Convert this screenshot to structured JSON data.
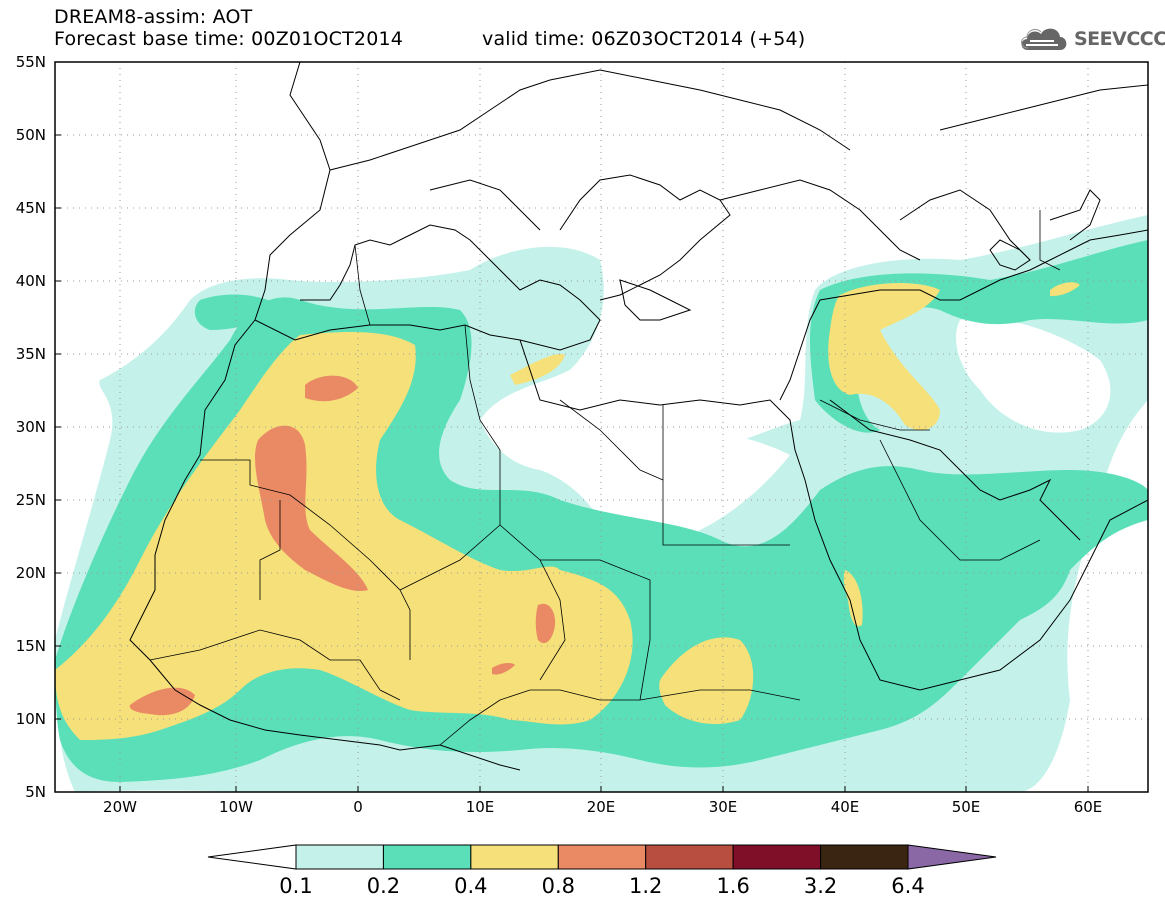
{
  "header": {
    "title_line1": "DREAM8-assim: AOT",
    "title_line2_left": "Forecast base time: 00Z01OCT2014",
    "title_line2_right": "valid time: 06Z03OCT2014 (+54)"
  },
  "logo": {
    "text": "SEEVCCC",
    "icon": "cloud-logo-icon"
  },
  "map": {
    "lon_range": [
      -25,
      65
    ],
    "lat_range": [
      5,
      55
    ],
    "lat_labels": [
      "55N",
      "50N",
      "45N",
      "40N",
      "35N",
      "30N",
      "25N",
      "20N",
      "15N",
      "10N",
      "5N"
    ],
    "lon_labels": [
      "20W",
      "10W",
      "0",
      "10E",
      "20E",
      "30E",
      "40E",
      "50E",
      "60E"
    ],
    "gridlines": "dotted"
  },
  "legend": {
    "labels": [
      "0.1",
      "0.2",
      "0.4",
      "0.8",
      "1.2",
      "1.6",
      "3.2",
      "6.4"
    ],
    "colors": [
      "#ffffff",
      "#c4f2ea",
      "#5adfb8",
      "#f5e07a",
      "#e98a65",
      "#b84e3f",
      "#7f0f29",
      "#3a2512",
      "#8a68a6"
    ]
  }
}
